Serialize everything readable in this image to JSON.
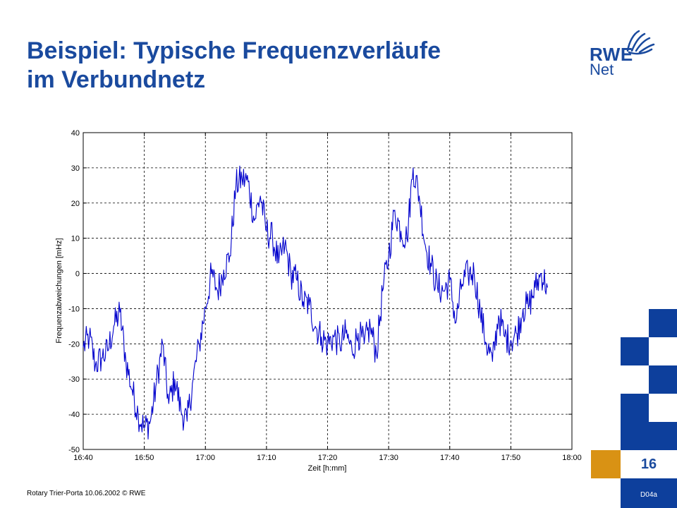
{
  "slide": {
    "title_line1": "Beispiel: Typische Frequenzverläufe",
    "title_line2": "im Verbundnetz",
    "logo_top": "RWE",
    "logo_bottom": "Net",
    "page_number": "16",
    "slide_id": "D04a",
    "footer": "Rotary Trier-Porta 10.06.2002  © RWE",
    "colors": {
      "title": "#1a4a9e",
      "brand_blue": "#0d3f9c",
      "accent_orange": "#d99214",
      "series": "#0000cc"
    }
  },
  "chart_data": {
    "type": "line",
    "xlabel": "Zeit [h:mm]",
    "ylabel": "Frequenzabweichungen [mHz]",
    "xlim": [
      "16:40",
      "18:00"
    ],
    "ylim": [
      -50,
      40
    ],
    "x_ticks": [
      "16:40",
      "16:50",
      "17:00",
      "17:10",
      "17:20",
      "17:30",
      "17:40",
      "17:50",
      "18:00"
    ],
    "y_ticks": [
      40,
      30,
      20,
      10,
      0,
      -10,
      -20,
      -30,
      -40,
      -50
    ],
    "grid": "dashed",
    "legend": "none",
    "series": [
      {
        "x": [
          "16:40",
          "16:41",
          "16:42",
          "16:43",
          "16:44",
          "16:45",
          "16:46",
          "16:47",
          "16:48",
          "16:49",
          "16:50",
          "16:51",
          "16:52",
          "16:53",
          "16:54",
          "16:55",
          "16:56",
          "16:57",
          "16:58",
          "16:59",
          "17:00",
          "17:01",
          "17:02",
          "17:03",
          "17:04",
          "17:05",
          "17:06",
          "17:07",
          "17:08",
          "17:09",
          "17:10",
          "17:11",
          "17:12",
          "17:13",
          "17:14",
          "17:15",
          "17:16",
          "17:17",
          "17:18",
          "17:19",
          "17:20",
          "17:21",
          "17:22",
          "17:23",
          "17:24",
          "17:25",
          "17:26",
          "17:27",
          "17:28",
          "17:29",
          "17:30",
          "17:31",
          "17:32",
          "17:33",
          "17:34",
          "17:35",
          "17:36",
          "17:37",
          "17:38",
          "17:39",
          "17:40",
          "17:41",
          "17:42",
          "17:43",
          "17:44",
          "17:45",
          "17:46",
          "17:47",
          "17:48",
          "17:49",
          "17:50",
          "17:51",
          "17:52",
          "17:53",
          "17:54",
          "17:55",
          "17:56"
        ],
        "values": [
          -21,
          -18,
          -26,
          -24,
          -22,
          -15,
          -11,
          -25,
          -33,
          -40,
          -44,
          -42,
          -31,
          -20,
          -37,
          -30,
          -39,
          -42,
          -30,
          -20,
          -10,
          0,
          -5,
          1,
          5,
          25,
          27,
          26,
          15,
          22,
          12,
          10,
          3,
          8,
          0,
          -2,
          -8,
          -9,
          -15,
          -18,
          -20,
          -18,
          -20,
          -17,
          -22,
          -17,
          -20,
          -15,
          -23,
          -5,
          5,
          18,
          12,
          10,
          30,
          22,
          8,
          2,
          -4,
          -5,
          -2,
          -14,
          -3,
          0,
          0,
          -11,
          -20,
          -25,
          -12,
          -18,
          -19,
          -17,
          -10,
          -9,
          -4,
          0,
          -4
        ]
      }
    ]
  }
}
